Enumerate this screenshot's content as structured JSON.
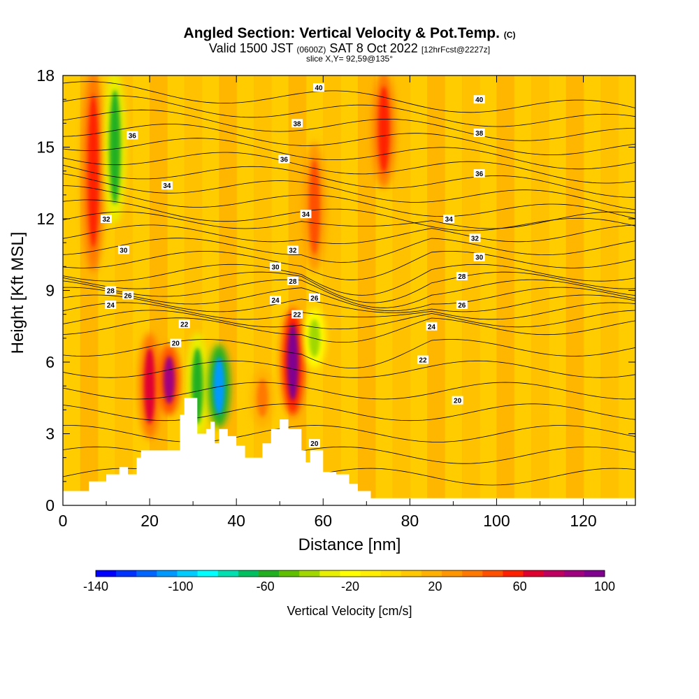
{
  "header": {
    "title_main": "Angled Section: Vertical Velocity & Pot.Temp.",
    "title_suffix": "(C)",
    "valid_prefix": "Valid 1500 JST",
    "valid_zulu": "(0600Z)",
    "valid_date": "SAT 8 Oct 2022",
    "forecast_tag": "[12hrFcst@2227z]",
    "slice": "slice X,Y= 92,59@135°"
  },
  "chart_data": {
    "type": "heatmap",
    "title": "Angled Section: Vertical Velocity & Pot.Temp. (C)",
    "xlabel": "Distance [nm]",
    "ylabel": "Height [Kft MSL]",
    "xlim": [
      0,
      132
    ],
    "ylim": [
      0,
      18
    ],
    "x_ticks": [
      0,
      20,
      40,
      60,
      80,
      100,
      120
    ],
    "y_ticks": [
      0,
      3,
      6,
      9,
      12,
      15,
      18
    ],
    "colorbar": {
      "label": "Vertical Velocity [cm/s]",
      "range": [
        -140,
        100
      ],
      "tick_values": [
        -140,
        -100,
        -60,
        -20,
        20,
        60,
        100
      ],
      "colors": [
        "#0000ff",
        "#0033ff",
        "#0066ff",
        "#0099ff",
        "#00ccff",
        "#00ffff",
        "#00e0b0",
        "#00c060",
        "#20b020",
        "#60c000",
        "#a0d800",
        "#e8f000",
        "#ffff00",
        "#ffee00",
        "#ffdd00",
        "#ffc800",
        "#ffb000",
        "#ff9600",
        "#ff7800",
        "#ff5000",
        "#ff2000",
        "#e00030",
        "#c00060",
        "#a00080",
        "#800090"
      ]
    },
    "background_velocity_cms": 15,
    "updrafts": [
      {
        "x": 7,
        "y_bottom": 10,
        "y_top": 18,
        "peak_cms": 60
      },
      {
        "x": 20,
        "y_bottom": 3,
        "y_top": 7,
        "peak_cms": 70
      },
      {
        "x": 24.5,
        "y_bottom": 4,
        "y_top": 6.5,
        "peak_cms": 90
      },
      {
        "x": 46,
        "y_bottom": 3.5,
        "y_top": 5.5,
        "peak_cms": 40
      },
      {
        "x": 53,
        "y_bottom": 4,
        "y_top": 8,
        "peak_cms": 100
      },
      {
        "x": 58,
        "y_bottom": 10,
        "y_top": 15,
        "peak_cms": 50
      },
      {
        "x": 74,
        "y_bottom": 13.5,
        "y_top": 18,
        "peak_cms": 60
      }
    ],
    "downdrafts": [
      {
        "x": 12,
        "y_bottom": 12,
        "y_top": 18,
        "peak_cms": -60
      },
      {
        "x": 31,
        "y_bottom": 3,
        "y_top": 7,
        "peak_cms": -60
      },
      {
        "x": 36,
        "y_bottom": 3.5,
        "y_top": 6.5,
        "peak_cms": -110
      },
      {
        "x": 58,
        "y_bottom": 6,
        "y_top": 8,
        "peak_cms": -40
      }
    ],
    "terrain": [
      [
        0,
        0.6
      ],
      [
        6,
        0.6
      ],
      [
        6,
        1
      ],
      [
        10,
        1
      ],
      [
        10,
        1.3
      ],
      [
        13,
        1.3
      ],
      [
        13,
        1.6
      ],
      [
        15,
        1.6
      ],
      [
        15,
        1.3
      ],
      [
        17,
        1.3
      ],
      [
        17,
        2
      ],
      [
        18,
        2
      ],
      [
        18,
        2.3
      ],
      [
        27,
        2.3
      ],
      [
        27,
        3.8
      ],
      [
        28,
        3.8
      ],
      [
        28,
        4.5
      ],
      [
        31,
        4.5
      ],
      [
        31,
        3
      ],
      [
        33,
        3
      ],
      [
        33,
        3.2
      ],
      [
        34,
        3.2
      ],
      [
        34,
        3.5
      ],
      [
        35,
        3.5
      ],
      [
        35,
        2.6
      ],
      [
        36,
        2.6
      ],
      [
        36,
        3.2
      ],
      [
        38,
        3.2
      ],
      [
        38,
        2.9
      ],
      [
        40,
        2.9
      ],
      [
        40,
        2.5
      ],
      [
        42,
        2.5
      ],
      [
        42,
        2
      ],
      [
        46,
        2
      ],
      [
        46,
        2.6
      ],
      [
        48,
        2.6
      ],
      [
        48,
        3.2
      ],
      [
        50,
        3.2
      ],
      [
        50,
        3.6
      ],
      [
        52,
        3.6
      ],
      [
        52,
        3.2
      ],
      [
        55,
        3.2
      ],
      [
        55,
        2.3
      ],
      [
        56,
        2.3
      ],
      [
        56,
        1.8
      ],
      [
        57,
        1.8
      ],
      [
        57,
        2.3
      ],
      [
        60,
        2.3
      ],
      [
        60,
        1.4
      ],
      [
        63,
        1.4
      ],
      [
        63,
        1.3
      ],
      [
        66,
        1.3
      ],
      [
        66,
        0.9
      ],
      [
        68,
        0.9
      ],
      [
        68,
        0.6
      ],
      [
        71,
        0.6
      ],
      [
        71,
        0.3
      ],
      [
        132,
        0.3
      ]
    ],
    "pot_temp_labels": [
      {
        "text": "40",
        "x": 59,
        "y": 17.5
      },
      {
        "text": "40",
        "x": 96,
        "y": 17.0
      },
      {
        "text": "38",
        "x": 54,
        "y": 16.0
      },
      {
        "text": "38",
        "x": 96,
        "y": 15.6
      },
      {
        "text": "36",
        "x": 16,
        "y": 15.5
      },
      {
        "text": "36",
        "x": 51,
        "y": 14.5
      },
      {
        "text": "36",
        "x": 96,
        "y": 13.9
      },
      {
        "text": "34",
        "x": 24,
        "y": 13.4
      },
      {
        "text": "34",
        "x": 56,
        "y": 12.2
      },
      {
        "text": "34",
        "x": 89,
        "y": 12.0
      },
      {
        "text": "32",
        "x": 10,
        "y": 12.0
      },
      {
        "text": "32",
        "x": 53,
        "y": 10.7
      },
      {
        "text": "32",
        "x": 95,
        "y": 11.2
      },
      {
        "text": "30",
        "x": 14,
        "y": 10.7
      },
      {
        "text": "30",
        "x": 49,
        "y": 10.0
      },
      {
        "text": "30",
        "x": 96,
        "y": 10.4
      },
      {
        "text": "28",
        "x": 11,
        "y": 9.0
      },
      {
        "text": "28",
        "x": 53,
        "y": 9.4
      },
      {
        "text": "28",
        "x": 92,
        "y": 9.6
      },
      {
        "text": "26",
        "x": 15,
        "y": 8.8
      },
      {
        "text": "26",
        "x": 58,
        "y": 8.7
      },
      {
        "text": "26",
        "x": 92,
        "y": 8.4
      },
      {
        "text": "24",
        "x": 11,
        "y": 8.4
      },
      {
        "text": "24",
        "x": 49,
        "y": 8.6
      },
      {
        "text": "24",
        "x": 85,
        "y": 7.5
      },
      {
        "text": "22",
        "x": 28,
        "y": 7.6
      },
      {
        "text": "22",
        "x": 54,
        "y": 8.0
      },
      {
        "text": "22",
        "x": 83,
        "y": 6.1
      },
      {
        "text": "20",
        "x": 26,
        "y": 6.8
      },
      {
        "text": "20",
        "x": 91,
        "y": 4.4
      },
      {
        "text": "20",
        "x": 58,
        "y": 2.6
      }
    ]
  }
}
